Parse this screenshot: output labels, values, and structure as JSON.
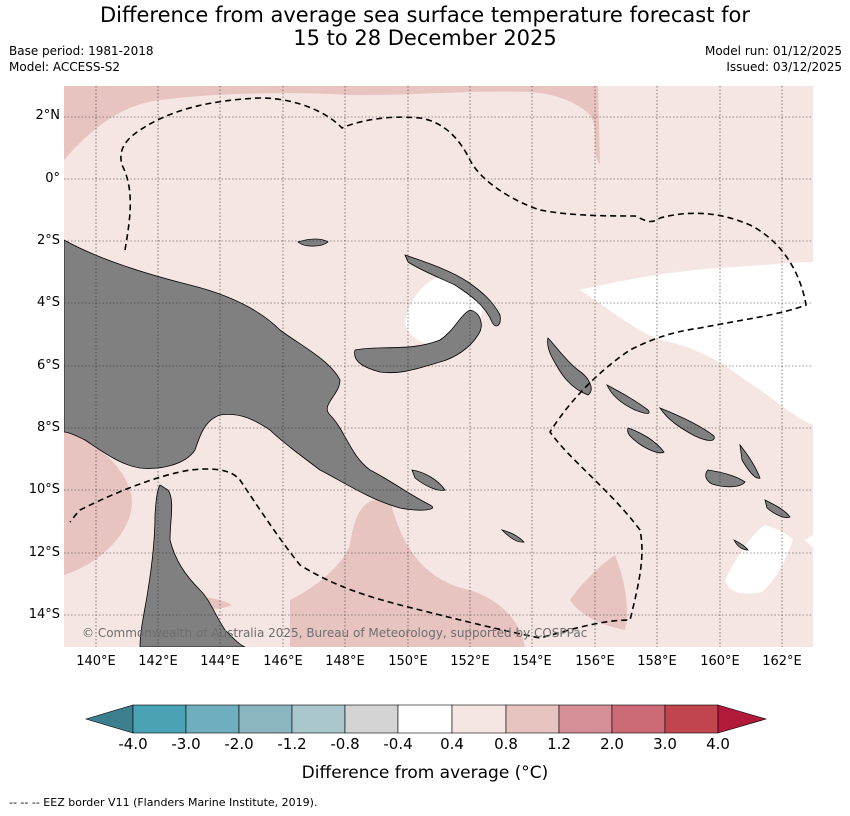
{
  "title_line1": "Difference from average sea surface temperature forecast for",
  "title_line2": "15 to 28 December 2025",
  "base_period": "Base period: 1981-2018",
  "model": "Model: ACCESS-S2",
  "model_run": "Model run: 01/12/2025",
  "issued": "Issued: 03/12/2025",
  "copyright": "© Commonwealth of Australia 2025, Bureau of Meteorology, supported by COSPPac",
  "lat_labels": [
    "2°N",
    "0°",
    "2°S",
    "4°S",
    "6°S",
    "8°S",
    "10°S",
    "12°S",
    "14°S"
  ],
  "lon_labels": [
    "140°E",
    "142°E",
    "144°E",
    "146°E",
    "148°E",
    "150°E",
    "152°E",
    "154°E",
    "156°E",
    "158°E",
    "160°E",
    "162°E"
  ],
  "colorbar": {
    "title": "Difference from average (°C)",
    "ticks": [
      "-4.0",
      "-3.0",
      "-2.0",
      "-1.2",
      "-0.8",
      "-0.4",
      "0.4",
      "0.8",
      "1.2",
      "2.0",
      "3.0",
      "4.0"
    ],
    "colors": [
      "#3c7f8e",
      "#4aa3b5",
      "#6faebf",
      "#8bb5c1",
      "#a8c6cb",
      "#d4d4d4",
      "#ffffff",
      "#f5e6e3",
      "#e8c4c0",
      "#d68f97",
      "#cc6b76",
      "#c0454f",
      "#b21a3a"
    ]
  },
  "legend_footer": "--  --  -- EEZ border V11 (Flanders Marine Institute, 2019).",
  "colors": {
    "land": "#808080",
    "band_0_4_0_8": "#f5e6e3",
    "band_0_8_1_2": "#e8c4c0",
    "band_neutral": "#ffffff"
  }
}
